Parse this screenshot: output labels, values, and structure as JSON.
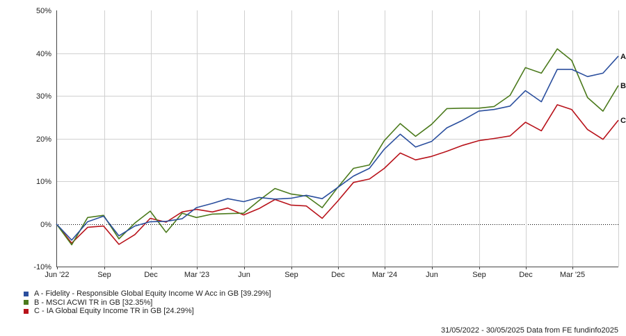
{
  "chart_data": {
    "type": "line",
    "title": "",
    "xlabel": "",
    "ylabel": "",
    "ylim": [
      -10,
      50
    ],
    "yticks": [
      -10,
      0,
      10,
      20,
      30,
      40,
      50
    ],
    "ytick_labels": [
      "-10%",
      "0%",
      "10%",
      "20%",
      "30%",
      "40%",
      "50%"
    ],
    "x": [
      "2022-05-31",
      "2022-06-30",
      "2022-07-31",
      "2022-08-31",
      "2022-09-30",
      "2022-10-31",
      "2022-11-30",
      "2022-12-31",
      "2023-01-31",
      "2023-02-28",
      "2023-03-31",
      "2023-04-30",
      "2023-05-31",
      "2023-06-30",
      "2023-07-31",
      "2023-08-31",
      "2023-09-30",
      "2023-10-31",
      "2023-11-30",
      "2023-12-31",
      "2024-01-31",
      "2024-02-29",
      "2024-03-31",
      "2024-04-30",
      "2024-05-31",
      "2024-06-30",
      "2024-07-31",
      "2024-08-31",
      "2024-09-30",
      "2024-10-31",
      "2024-11-30",
      "2024-12-31",
      "2025-01-31",
      "2025-02-28",
      "2025-03-31",
      "2025-04-30",
      "2025-05-30"
    ],
    "xtick_labels": [
      {
        "date": "2022-06-01",
        "label": "Jun '22"
      },
      {
        "date": "2022-09-01",
        "label": "Sep"
      },
      {
        "date": "2022-12-01",
        "label": "Dec"
      },
      {
        "date": "2023-03-01",
        "label": "Mar '23"
      },
      {
        "date": "2023-06-01",
        "label": "Jun"
      },
      {
        "date": "2023-09-01",
        "label": "Sep"
      },
      {
        "date": "2023-12-01",
        "label": "Dec"
      },
      {
        "date": "2024-03-01",
        "label": "Mar '24"
      },
      {
        "date": "2024-06-01",
        "label": "Jun"
      },
      {
        "date": "2024-09-01",
        "label": "Sep"
      },
      {
        "date": "2024-12-01",
        "label": "Dec"
      },
      {
        "date": "2025-03-01",
        "label": "Mar '25"
      }
    ],
    "grid": true,
    "zero_line": "dotted",
    "legend_position": "bottom-left",
    "series": [
      {
        "name": "A - Fidelity - Responsible Global Equity Income W Acc in GB [39.29%]",
        "end_label": "A",
        "color": "#2b4f9e",
        "values": [
          0.0,
          -3.8,
          0.5,
          1.8,
          -2.8,
          -0.5,
          0.5,
          0.6,
          1.2,
          3.8,
          4.8,
          5.9,
          5.2,
          6.2,
          5.8,
          6.0,
          6.7,
          5.9,
          8.5,
          11.2,
          13.0,
          17.5,
          21.0,
          18.0,
          19.3,
          22.5,
          24.3,
          26.4,
          26.8,
          27.6,
          31.2,
          28.6,
          36.2,
          36.2,
          34.5,
          35.3,
          39.3
        ]
      },
      {
        "name": "B - MSCI ACWI TR in GB [32.35%]",
        "end_label": "B",
        "color": "#4b7a1c",
        "values": [
          0.0,
          -4.9,
          1.5,
          2.0,
          -3.5,
          0.2,
          3.0,
          -2.0,
          2.5,
          1.5,
          2.3,
          2.4,
          2.5,
          5.5,
          8.3,
          7.0,
          6.5,
          3.8,
          8.5,
          13.0,
          13.8,
          19.5,
          23.5,
          20.5,
          23.3,
          27.0,
          27.1,
          27.1,
          27.5,
          30.1,
          36.6,
          35.3,
          41.0,
          38.3,
          29.6,
          26.4,
          32.4
        ]
      },
      {
        "name": "C - IA Global Equity Income TR in GB [24.29%]",
        "end_label": "C",
        "color": "#b8121a",
        "values": [
          0.0,
          -4.5,
          -0.8,
          -0.5,
          -4.8,
          -2.5,
          1.3,
          0.4,
          2.8,
          3.4,
          2.8,
          3.7,
          2.1,
          3.6,
          5.7,
          4.4,
          4.2,
          1.3,
          5.3,
          9.7,
          10.5,
          13.0,
          16.6,
          15.0,
          15.8,
          17.0,
          18.4,
          19.5,
          20.0,
          20.6,
          23.8,
          21.8,
          27.9,
          26.8,
          22.1,
          19.8,
          24.3
        ]
      }
    ]
  },
  "footer": {
    "text": "31/05/2022 - 30/05/2025 Data from FE fundinfo2025"
  }
}
